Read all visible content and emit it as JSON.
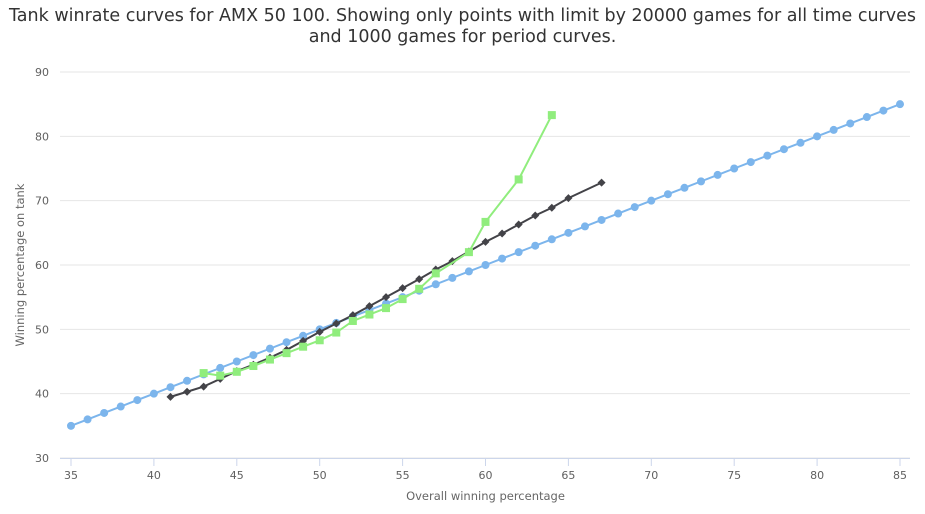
{
  "chart_data": {
    "type": "line",
    "title": "Tank winrate curves for AMX 50 100. Showing only points with limit by 20000 games for all time curves and 1000 games for period curves.",
    "xlabel": "Overall winning percentage",
    "ylabel": "Winning percentage on tank",
    "xlim": [
      35,
      85
    ],
    "ylim": [
      30,
      90
    ],
    "x_ticks": [
      "35",
      "40",
      "45",
      "50",
      "55",
      "60",
      "65",
      "70",
      "75",
      "80",
      "85"
    ],
    "y_ticks": [
      "30",
      "40",
      "50",
      "60",
      "70",
      "80",
      "90"
    ],
    "grid": "horizontal",
    "series": [
      {
        "marker": "circle",
        "color": "#7cb5ec",
        "points": [
          [
            35,
            35
          ],
          [
            36,
            36
          ],
          [
            37,
            37
          ],
          [
            38,
            38
          ],
          [
            39,
            39
          ],
          [
            40,
            40
          ],
          [
            41,
            41
          ],
          [
            42,
            42
          ],
          [
            43,
            43
          ],
          [
            44,
            44
          ],
          [
            45,
            45
          ],
          [
            46,
            46
          ],
          [
            47,
            47
          ],
          [
            48,
            48
          ],
          [
            49,
            49
          ],
          [
            50,
            50
          ],
          [
            51,
            51
          ],
          [
            52,
            52
          ],
          [
            53,
            53
          ],
          [
            54,
            54
          ],
          [
            55,
            55
          ],
          [
            56,
            56
          ],
          [
            57,
            57
          ],
          [
            58,
            58
          ],
          [
            59,
            59
          ],
          [
            60,
            60
          ],
          [
            61,
            61
          ],
          [
            62,
            62
          ],
          [
            63,
            63
          ],
          [
            64,
            64
          ],
          [
            65,
            65
          ],
          [
            66,
            66
          ],
          [
            67,
            67
          ],
          [
            68,
            68
          ],
          [
            69,
            69
          ],
          [
            70,
            70
          ],
          [
            71,
            71
          ],
          [
            72,
            72
          ],
          [
            73,
            73
          ],
          [
            74,
            74
          ],
          [
            75,
            75
          ],
          [
            76,
            76
          ],
          [
            77,
            77
          ],
          [
            78,
            78
          ],
          [
            79,
            79
          ],
          [
            80,
            80
          ],
          [
            81,
            81
          ],
          [
            82,
            82
          ],
          [
            83,
            83
          ],
          [
            84,
            84
          ],
          [
            85,
            85
          ]
        ]
      },
      {
        "marker": "diamond",
        "color": "#434348",
        "points": [
          [
            41,
            39.5
          ],
          [
            42,
            40.3
          ],
          [
            43,
            41.1
          ],
          [
            44,
            42.3
          ],
          [
            45,
            43.5
          ],
          [
            46,
            44.5
          ],
          [
            47,
            45.6
          ],
          [
            48,
            46.8
          ],
          [
            49,
            48.2
          ],
          [
            50,
            49.6
          ],
          [
            51,
            50.9
          ],
          [
            52,
            52.2
          ],
          [
            53,
            53.6
          ],
          [
            54,
            55.0
          ],
          [
            55,
            56.4
          ],
          [
            56,
            57.8
          ],
          [
            57,
            59.3
          ],
          [
            58,
            60.6
          ],
          [
            59,
            62.1
          ],
          [
            60,
            63.6
          ],
          [
            61,
            64.9
          ],
          [
            62,
            66.3
          ],
          [
            63,
            67.7
          ],
          [
            64,
            68.9
          ],
          [
            65,
            70.4
          ],
          [
            67,
            72.8
          ]
        ]
      },
      {
        "marker": "square",
        "color": "#90ed7d",
        "points": [
          [
            43,
            43.2
          ],
          [
            44,
            42.8
          ],
          [
            45,
            43.4
          ],
          [
            46,
            44.3
          ],
          [
            47,
            45.3
          ],
          [
            48,
            46.3
          ],
          [
            49,
            47.3
          ],
          [
            50,
            48.3
          ],
          [
            51,
            49.5
          ],
          [
            52,
            51.3
          ],
          [
            53,
            52.3
          ],
          [
            54,
            53.3
          ],
          [
            55,
            54.7
          ],
          [
            56,
            56.3
          ],
          [
            57,
            58.7
          ],
          [
            59,
            62.0
          ],
          [
            60,
            66.7
          ],
          [
            62,
            73.3
          ],
          [
            64,
            83.3
          ]
        ]
      }
    ]
  }
}
